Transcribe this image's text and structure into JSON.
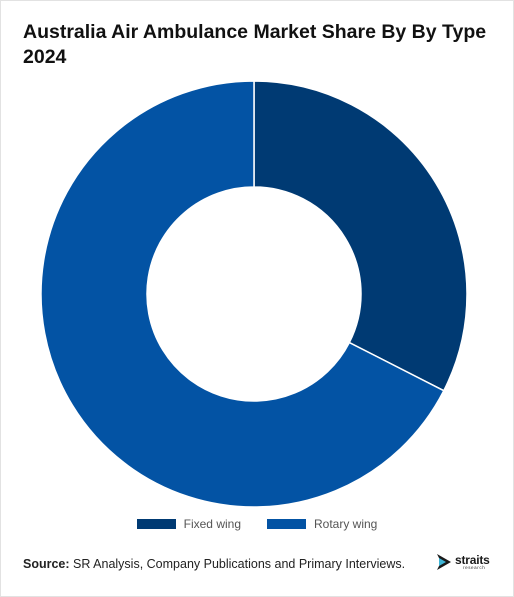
{
  "chart_data": {
    "type": "pie",
    "variant": "donut",
    "title": "Australia Air Ambulance Market Share By By Type 2024",
    "categories": [
      "Fixed wing",
      "Rotary wing"
    ],
    "values": [
      32.5,
      67.5
    ],
    "colors": [
      "#003a73",
      "#0353a4"
    ],
    "legend_position": "bottom",
    "slice_border_color": "#ffffff"
  },
  "source": {
    "label": "Source:",
    "text": " SR Analysis, Company Publications and Primary Interviews."
  },
  "logo": {
    "brand": "straits",
    "sub": "research"
  }
}
